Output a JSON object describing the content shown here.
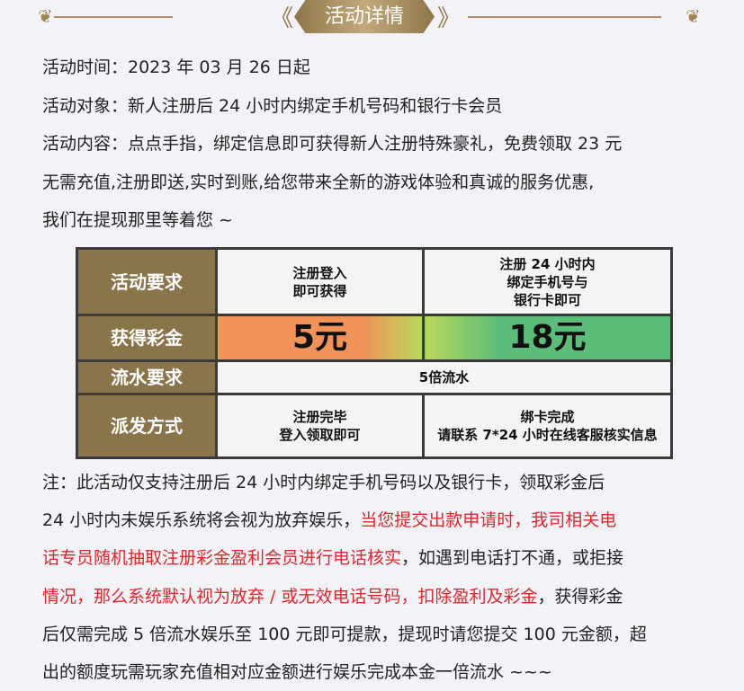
{
  "header": {
    "title": "活动详情",
    "accent": "#8e7648"
  },
  "intro": [
    "活动时间：2023 年 03 月 26 日起",
    "活动对象：新人注册后 24 小时内绑定手机号码和银行卡会员",
    "活动内容：点点手指，绑定信息即可获得新人注册特殊豪礼，免费领取 23 元",
    "无需充值,注册即送,实时到账,给您带来全新的游戏体验和真诚的服务优惠,",
    "我们在提现那里等着您 ~"
  ],
  "table": {
    "rows": [
      {
        "label": "活动要求",
        "cells": [
          "注册登入\n即可获得",
          "注册 24 小时内\n绑定手机号与\n银行卡即可"
        ]
      },
      {
        "label": "获得彩金",
        "cells": [
          "5元",
          "18元"
        ]
      },
      {
        "label": "流水要求",
        "cells": [
          "5倍流水"
        ]
      },
      {
        "label": "派发方式",
        "cells": [
          "注册完毕\n登入领取即可",
          "绑卡完成\n请联系 7*24 小时在线客服核实信息"
        ]
      }
    ]
  },
  "notes": {
    "l1": "注：此活动仅支持注册后 24 小时内绑定手机号码以及银行卡，领取彩金后",
    "l2a": "24 小时内未娱乐系统将会视为放弃娱乐，",
    "l2b": "当您提交出款申请时，我司相关电",
    "l3a": "话专员随机抽取注册彩金盈利会员进行电话核实",
    "l3b": "，如遇到电话打不通，或拒接",
    "l4a": "情况，那么系统默认视为放弃 / 或无效电话号码，扣除盈利及彩金",
    "l4b": "，获得彩金",
    "l5": "后仅需完成 5 倍流水娱乐至 100 元即可提款，提现时请您提交 100 元金额，超",
    "l6": "出的额度玩需玩家充值相对应金额进行娱乐完成本金一倍流水 ~~~",
    "highlight": "#e0262c"
  }
}
